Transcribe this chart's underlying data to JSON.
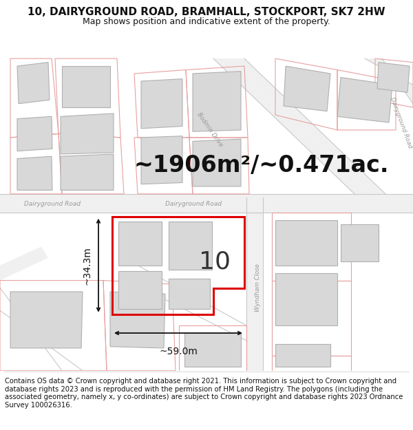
{
  "title": "10, DAIRYGROUND ROAD, BRAMHALL, STOCKPORT, SK7 2HW",
  "subtitle": "Map shows position and indicative extent of the property.",
  "area_text": "~1906m²/~0.471ac.",
  "property_number": "10",
  "dim_width": "~59.0m",
  "dim_height": "~34.3m",
  "footer_text": "Contains OS data © Crown copyright and database right 2021. This information is subject to Crown copyright and database rights 2023 and is reproduced with the permission of HM Land Registry. The polygons (including the associated geometry, namely x, y co-ordinates) are subject to Crown copyright and database rights 2023 Ordnance Survey 100026316.",
  "bg_color": "#ffffff",
  "map_bg": "#ffffff",
  "plot_line_color": "#e8a0a0",
  "road_line_color": "#c8c8c8",
  "road_fill_color": "#f0f0f0",
  "property_stroke": "#dd0000",
  "building_fill": "#d8d8d8",
  "building_stroke": "#b0b0b0",
  "text_color": "#111111",
  "road_text_color": "#888888",
  "title_fontsize": 11,
  "subtitle_fontsize": 9,
  "area_fontsize": 24,
  "property_num_fontsize": 26,
  "dim_fontsize": 10,
  "footer_fontsize": 7.2
}
